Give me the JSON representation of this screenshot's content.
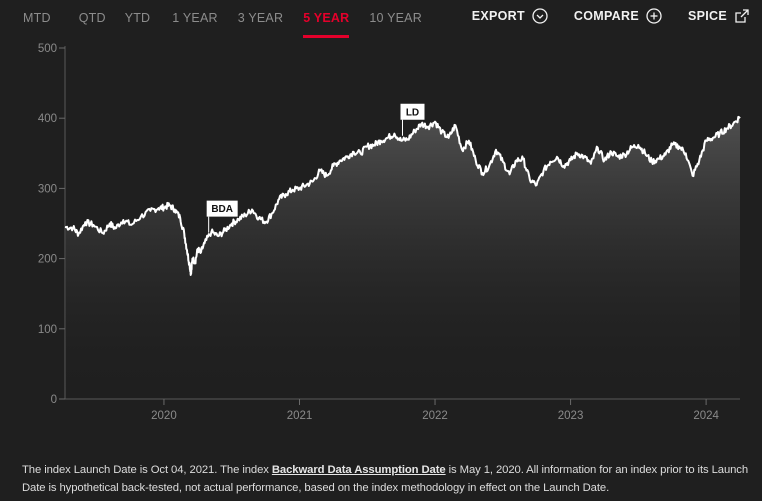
{
  "tabs": [
    {
      "label": "MTD",
      "active": false
    },
    {
      "label": "QTD",
      "active": false
    },
    {
      "label": "YTD",
      "active": false
    },
    {
      "label": "1 YEAR",
      "active": false
    },
    {
      "label": "3 YEAR",
      "active": false
    },
    {
      "label": "5 YEAR",
      "active": true
    },
    {
      "label": "10 YEAR",
      "active": false
    }
  ],
  "actions": {
    "export": {
      "label": "EXPORT",
      "icon": "chevron-down-circle-icon"
    },
    "compare": {
      "label": "COMPARE",
      "icon": "plus-circle-icon"
    },
    "spice": {
      "label": "SPICE",
      "icon": "external-link-icon"
    }
  },
  "colors": {
    "background": "#1f1f1f",
    "accent": "#e4002b",
    "line": "#ffffff",
    "axis_text": "#8a8a8a"
  },
  "chart_data": {
    "type": "area",
    "title": "",
    "xlabel": "",
    "ylabel": "",
    "ylim": [
      0,
      500
    ],
    "yticks": [
      0,
      100,
      200,
      300,
      400,
      500
    ],
    "xlim": [
      2019.27,
      2024.25
    ],
    "xticks": [
      2020,
      2021,
      2022,
      2023,
      2024
    ],
    "grid": false,
    "annotations": [
      {
        "label": "BDA",
        "x": 2020.33,
        "y": 237
      },
      {
        "label": "LD",
        "x": 2021.76,
        "y": 375
      }
    ],
    "series": [
      {
        "x": [
          2019.27,
          2019.33,
          2019.37,
          2019.42,
          2019.48,
          2019.55,
          2019.6,
          2019.64,
          2019.7,
          2019.76,
          2019.83,
          2019.9,
          2019.96,
          2020.0,
          2020.04,
          2020.08,
          2020.12,
          2020.15,
          2020.17,
          2020.19,
          2020.2,
          2020.21,
          2020.23,
          2020.25,
          2020.27,
          2020.3,
          2020.35,
          2020.4,
          2020.45,
          2020.5,
          2020.55,
          2020.6,
          2020.65,
          2020.7,
          2020.75,
          2020.8,
          2020.85,
          2020.9,
          2020.95,
          2021.0,
          2021.05,
          2021.1,
          2021.15,
          2021.2,
          2021.25,
          2021.3,
          2021.35,
          2021.4,
          2021.45,
          2021.5,
          2021.55,
          2021.6,
          2021.65,
          2021.7,
          2021.75,
          2021.8,
          2021.85,
          2021.9,
          2021.95,
          2022.0,
          2022.05,
          2022.1,
          2022.15,
          2022.2,
          2022.25,
          2022.3,
          2022.35,
          2022.4,
          2022.45,
          2022.5,
          2022.55,
          2022.6,
          2022.65,
          2022.7,
          2022.75,
          2022.8,
          2022.85,
          2022.9,
          2022.95,
          2023.0,
          2023.05,
          2023.1,
          2023.15,
          2023.2,
          2023.25,
          2023.3,
          2023.35,
          2023.4,
          2023.45,
          2023.5,
          2023.55,
          2023.6,
          2023.65,
          2023.7,
          2023.75,
          2023.8,
          2023.85,
          2023.9,
          2023.95,
          2024.0,
          2024.05,
          2024.1,
          2024.15,
          2024.2,
          2024.25
        ],
        "values": [
          245,
          244,
          235,
          252,
          248,
          236,
          250,
          243,
          255,
          248,
          260,
          268,
          272,
          273,
          276,
          270,
          258,
          235,
          212,
          190,
          178,
          200,
          195,
          214,
          208,
          222,
          238,
          232,
          240,
          250,
          256,
          262,
          270,
          258,
          252,
          265,
          285,
          292,
          298,
          300,
          305,
          310,
          325,
          318,
          332,
          340,
          345,
          352,
          350,
          360,
          362,
          368,
          372,
          378,
          368,
          370,
          382,
          392,
          388,
          395,
          380,
          372,
          390,
          355,
          368,
          340,
          322,
          332,
          355,
          338,
          320,
          340,
          342,
          312,
          305,
          325,
          338,
          345,
          332,
          340,
          350,
          345,
          335,
          358,
          340,
          352,
          345,
          348,
          358,
          362,
          350,
          338,
          342,
          348,
          362,
          360,
          350,
          318,
          340,
          368,
          372,
          378,
          385,
          392,
          402
        ]
      }
    ]
  },
  "footer": {
    "text_before": "The index Launch Date is Oct 04, 2021. The index ",
    "link": "Backward Data Assumption Date",
    "text_after": " is May 1, 2020. All information for an index prior to its Launch Date is hypothetical back-tested, not actual performance, based on the index methodology in effect on the Launch Date."
  }
}
